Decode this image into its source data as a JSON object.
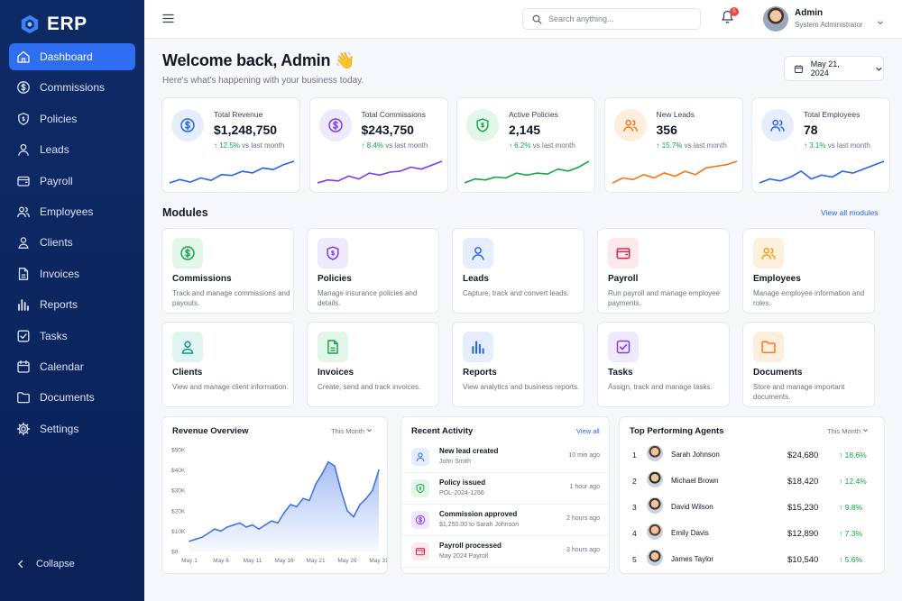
{
  "app": {
    "name": "ERP"
  },
  "sidebar": {
    "items": [
      {
        "label": "Dashboard",
        "icon": "home-icon",
        "active": true
      },
      {
        "label": "Commissions",
        "icon": "dollar-circle-icon"
      },
      {
        "label": "Policies",
        "icon": "shield-icon"
      },
      {
        "label": "Leads",
        "icon": "user-icon"
      },
      {
        "label": "Payroll",
        "icon": "wallet-icon"
      },
      {
        "label": "Employees",
        "icon": "users-icon"
      },
      {
        "label": "Clients",
        "icon": "user-circle-icon"
      },
      {
        "label": "Invoices",
        "icon": "file-icon"
      },
      {
        "label": "Reports",
        "icon": "bar-chart-icon"
      },
      {
        "label": "Tasks",
        "icon": "checkbox-icon"
      },
      {
        "label": "Calendar",
        "icon": "calendar-icon"
      },
      {
        "label": "Documents",
        "icon": "folder-icon"
      },
      {
        "label": "Settings",
        "icon": "gear-icon"
      }
    ],
    "collapse_label": "Collapse"
  },
  "topbar": {
    "search_placeholder": "Search anything...",
    "notification_count": "5",
    "user": {
      "name": "Admin",
      "role": "System Administrator"
    }
  },
  "header": {
    "title": "Welcome back, Admin 👋",
    "subtitle": "Here's what's happening with your business today.",
    "date": "May 21, 2024"
  },
  "stats": [
    {
      "label": "Total Revenue",
      "value": "$1,248,750",
      "change": "12.5%",
      "change_suffix": " vs last month",
      "color": "#2563eb",
      "spark": [
        3,
        5,
        3.5,
        6,
        4.5,
        8,
        7.5,
        10,
        9,
        12,
        11,
        14,
        16
      ]
    },
    {
      "label": "Total Commissions",
      "value": "$243,750",
      "change": "8.4%",
      "change_suffix": " vs last month",
      "color": "#7c3aed",
      "spark": [
        3,
        4.5,
        4,
        6.5,
        5,
        8,
        7,
        8.5,
        9,
        11,
        10,
        12,
        14
      ]
    },
    {
      "label": "Active Policies",
      "value": "2,145",
      "change": "6.2%",
      "change_suffix": " vs last month",
      "color": "#16a34a",
      "spark": [
        4,
        6,
        5.5,
        7,
        6.5,
        9,
        8,
        9,
        8.5,
        11,
        10,
        12,
        15
      ]
    },
    {
      "label": "New Leads",
      "value": "356",
      "change": "15.7%",
      "change_suffix": " vs last month",
      "color": "#f97316",
      "spark": [
        3,
        6,
        5,
        8,
        6,
        9,
        7,
        10,
        8,
        12,
        13,
        14,
        16
      ]
    },
    {
      "label": "Total Employees",
      "value": "78",
      "change": "3.1%",
      "change_suffix": " vs last month",
      "color": "#2563eb",
      "spark": [
        3,
        5,
        4,
        6,
        9,
        5,
        7,
        6,
        9,
        8,
        10,
        12,
        14
      ]
    }
  ],
  "modules": {
    "title": "Modules",
    "view_all": "View all modules",
    "items": [
      {
        "title": "Commissions",
        "desc": "Track and manage commissions and payouts.",
        "icon": "dollar-circle-icon",
        "color": "#16a34a",
        "bg": "#e3f6ea"
      },
      {
        "title": "Policies",
        "desc": "Manage insurance policies and details.",
        "icon": "shield-icon",
        "color": "#7c3aed",
        "bg": "#efe9fd"
      },
      {
        "title": "Leads",
        "desc": "Capture, track and convert leads.",
        "icon": "user-icon",
        "color": "#2563eb",
        "bg": "#e6eefd"
      },
      {
        "title": "Payroll",
        "desc": "Run payroll and manage employee payments.",
        "icon": "wallet-icon",
        "color": "#e11d48",
        "bg": "#fde8ec"
      },
      {
        "title": "Employees",
        "desc": "Manage employee information and roles.",
        "icon": "users-icon",
        "color": "#f59e0b",
        "bg": "#fdf1dd"
      },
      {
        "title": "Clients",
        "desc": "View and manage client information.",
        "icon": "user-circle-icon",
        "color": "#0d9488",
        "bg": "#e0f5f1"
      },
      {
        "title": "Invoices",
        "desc": "Create, send and track invoices.",
        "icon": "file-icon",
        "color": "#16a34a",
        "bg": "#e3f6ea"
      },
      {
        "title": "Reports",
        "desc": "View analytics and business reports.",
        "icon": "bar-chart-icon",
        "color": "#2563eb",
        "bg": "#e6eefd"
      },
      {
        "title": "Tasks",
        "desc": "Assign, track and manage tasks.",
        "icon": "checkbox-icon",
        "color": "#7c3aed",
        "bg": "#efe9fd"
      },
      {
        "title": "Documents",
        "desc": "Store and manage important documents.",
        "icon": "folder-icon",
        "color": "#f97316",
        "bg": "#fdeedd"
      }
    ]
  },
  "revenue": {
    "title": "Revenue Overview",
    "period": "This Month"
  },
  "activity": {
    "title": "Recent Activity",
    "view_all": "View all",
    "items": [
      {
        "title": "New lead created",
        "sub": "John Smith",
        "time": "10 min ago",
        "icon": "user-icon",
        "color": "#2563eb",
        "bg": "#e6eefd"
      },
      {
        "title": "Policy issued",
        "sub": "POL-2024-1256",
        "time": "1 hour ago",
        "icon": "shield-icon",
        "color": "#16a34a",
        "bg": "#e3f6ea"
      },
      {
        "title": "Commission approved",
        "sub": "$1,250.00 to Sarah Johnson",
        "time": "2 hours ago",
        "icon": "dollar-circle-icon",
        "color": "#7c3aed",
        "bg": "#efe9fd"
      },
      {
        "title": "Payroll processed",
        "sub": "May 2024 Payroll",
        "time": "3 hours ago",
        "icon": "wallet-icon",
        "color": "#e11d48",
        "bg": "#fde8ec"
      }
    ]
  },
  "agents": {
    "title": "Top Performing Agents",
    "period": "This Month",
    "rows": [
      {
        "rank": "1",
        "name": "Sarah Johnson",
        "amount": "$24,680",
        "change": "18.6%"
      },
      {
        "rank": "2",
        "name": "Michael Brown",
        "amount": "$18,420",
        "change": "12.4%"
      },
      {
        "rank": "3",
        "name": "David Wilson",
        "amount": "$15,230",
        "change": "9.8%"
      },
      {
        "rank": "4",
        "name": "Emily Davis",
        "amount": "$12,890",
        "change": "7.3%"
      },
      {
        "rank": "5",
        "name": "James Taylor",
        "amount": "$10,540",
        "change": "5.6%"
      }
    ]
  },
  "chart_data": {
    "type": "area",
    "x": [
      "May 1",
      "May 2",
      "May 3",
      "May 4",
      "May 5",
      "May 6",
      "May 7",
      "May 8",
      "May 9",
      "May 10",
      "May 11",
      "May 12",
      "May 13",
      "May 14",
      "May 15",
      "May 16",
      "May 17",
      "May 18",
      "May 19",
      "May 20",
      "May 21",
      "May 22",
      "May 23",
      "May 24",
      "May 25",
      "May 26",
      "May 27",
      "May 28",
      "May 29",
      "May 30",
      "May 31"
    ],
    "values": [
      5,
      6,
      7,
      9,
      11,
      10,
      12,
      13,
      14,
      12,
      13,
      11,
      13,
      15,
      14,
      19,
      23,
      22,
      26,
      25,
      33,
      38,
      44,
      42,
      30,
      20,
      17,
      23,
      26,
      30,
      40
    ],
    "tick_labels": [
      "May 1",
      "May 6",
      "May 11",
      "May 16",
      "May 21",
      "May 26",
      "May 31"
    ],
    "y_ticks": [
      "$0",
      "$10K",
      "$20K",
      "$30K",
      "$40K",
      "$50K"
    ],
    "ylim": [
      0,
      50
    ],
    "color": "#3b6fe6"
  }
}
